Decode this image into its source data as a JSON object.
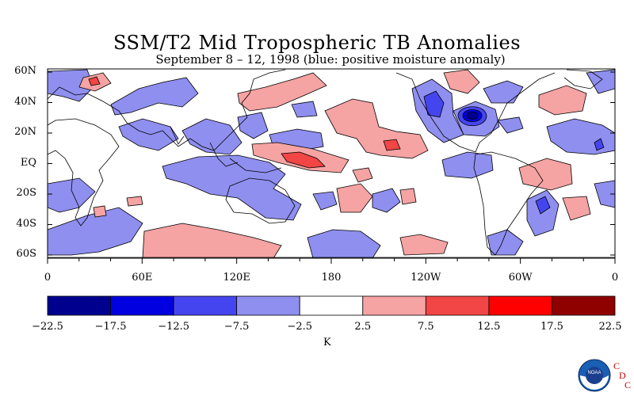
{
  "title": "SSM/T2 Mid Tropospheric TB Anomalies",
  "subtitle": "September 8 – 12, 1998 (blue: positive moisture anomaly)",
  "lat_labels": [
    "60N",
    "40N",
    "20N",
    "EQ",
    "20S",
    "40S",
    "60S"
  ],
  "lon_labels": [
    "0",
    "60E",
    "120E",
    "180",
    "120W",
    "60W",
    "0"
  ],
  "colorbar": {
    "ticks": [
      "−22.5",
      "−17.5",
      "−12.5",
      "−7.5",
      "−2.5",
      "2.5",
      "7.5",
      "12.5",
      "17.5",
      "22.5"
    ],
    "colors": [
      "#00008f",
      "#0000e0",
      "#4545f0",
      "#8f8ff0",
      "#ffffff",
      "#f5a3a3",
      "#f24545",
      "#ff0000",
      "#8f0000"
    ],
    "units": "K"
  },
  "colors": {
    "neg_light": "#8f8ff0",
    "neg_mid": "#4545f0",
    "neg_strong": "#0000e0",
    "neg_max": "#00008f",
    "pos_light": "#f5a3a3",
    "pos_mid": "#f24545"
  },
  "logo": {
    "agency": "NOAA",
    "letters": [
      "C",
      "D",
      "C"
    ]
  }
}
